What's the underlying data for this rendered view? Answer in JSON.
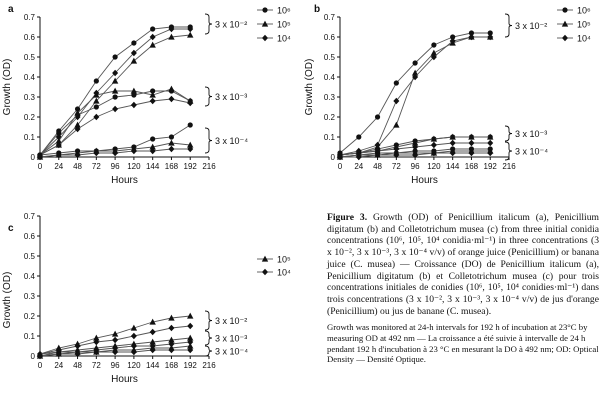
{
  "chart_data": [
    {
      "panel_label": "a",
      "type": "line",
      "ylabel": "Growth (OD)",
      "xlabel": "Hours",
      "x_ticks": [
        0,
        24,
        48,
        72,
        96,
        120,
        144,
        168,
        192,
        216
      ],
      "y_ticks": [
        "0",
        "0.1",
        "0.2",
        "0.3",
        "0.4",
        "0.5",
        "0.6",
        "0.7"
      ],
      "ylim": [
        0,
        0.7
      ],
      "xlim": [
        0,
        216
      ],
      "legend": [
        {
          "label": "10⁶",
          "marker": "circle"
        },
        {
          "label": "10⁵",
          "marker": "triangle"
        },
        {
          "label": "10⁴",
          "marker": "diamond"
        }
      ],
      "annotations": [
        "3 x 10⁻²",
        "3 x 10⁻³",
        "3 x 10⁻⁴"
      ],
      "x": [
        0,
        24,
        48,
        72,
        96,
        120,
        144,
        168,
        192
      ],
      "series": [
        {
          "marker": "circle",
          "values": [
            0.01,
            0.13,
            0.24,
            0.38,
            0.5,
            0.57,
            0.64,
            0.65,
            0.65
          ]
        },
        {
          "marker": "triangle",
          "values": [
            0.01,
            0.06,
            0.16,
            0.28,
            0.38,
            0.48,
            0.56,
            0.6,
            0.61
          ]
        },
        {
          "marker": "diamond",
          "values": [
            0.01,
            0.1,
            0.2,
            0.32,
            0.42,
            0.52,
            0.6,
            0.64,
            0.64
          ]
        },
        {
          "marker": "circle",
          "values": [
            0.01,
            0.12,
            0.21,
            0.25,
            0.3,
            0.31,
            0.33,
            0.33,
            0.28
          ]
        },
        {
          "marker": "triangle",
          "values": [
            0.01,
            0.08,
            0.22,
            0.31,
            0.33,
            0.33,
            0.31,
            0.34,
            0.28
          ]
        },
        {
          "marker": "diamond",
          "values": [
            0.01,
            0.06,
            0.14,
            0.2,
            0.24,
            0.26,
            0.28,
            0.29,
            0.27
          ]
        },
        {
          "marker": "circle",
          "values": [
            0.01,
            0.02,
            0.03,
            0.03,
            0.04,
            0.05,
            0.09,
            0.1,
            0.16
          ]
        },
        {
          "marker": "triangle",
          "values": [
            0.0,
            0.01,
            0.02,
            0.03,
            0.03,
            0.04,
            0.05,
            0.07,
            0.06
          ]
        },
        {
          "marker": "diamond",
          "values": [
            0.0,
            0.01,
            0.01,
            0.02,
            0.02,
            0.03,
            0.03,
            0.04,
            0.04
          ]
        }
      ]
    },
    {
      "panel_label": "b",
      "type": "line",
      "ylabel": "Growth (OD)",
      "xlabel": "Hours",
      "x_ticks": [
        0,
        24,
        48,
        72,
        96,
        120,
        144,
        168,
        192,
        216
      ],
      "y_ticks": [
        "0",
        "0.1",
        "0.2",
        "0.3",
        "0.4",
        "0.5",
        "0.6",
        "0.7"
      ],
      "ylim": [
        0,
        0.7
      ],
      "xlim": [
        0,
        216
      ],
      "legend": [
        {
          "label": "10⁶",
          "marker": "circle"
        },
        {
          "label": "10⁵",
          "marker": "triangle"
        },
        {
          "label": "10⁴",
          "marker": "diamond"
        }
      ],
      "annotations": [
        "3 x 10⁻²",
        "3 x 10⁻³",
        "3 x 10⁻⁴"
      ],
      "x": [
        0,
        24,
        48,
        72,
        96,
        120,
        144,
        168,
        192
      ],
      "series": [
        {
          "marker": "circle",
          "values": [
            0.02,
            0.1,
            0.2,
            0.37,
            0.47,
            0.56,
            0.6,
            0.62,
            0.62
          ]
        },
        {
          "marker": "triangle",
          "values": [
            0.01,
            0.02,
            0.05,
            0.16,
            0.42,
            0.52,
            0.57,
            0.6,
            0.6
          ]
        },
        {
          "marker": "diamond",
          "values": [
            0.01,
            0.03,
            0.06,
            0.28,
            0.4,
            0.5,
            0.58,
            0.6,
            0.6
          ]
        },
        {
          "marker": "circle",
          "values": [
            0.01,
            0.02,
            0.04,
            0.06,
            0.08,
            0.09,
            0.1,
            0.1,
            0.1
          ]
        },
        {
          "marker": "triangle",
          "values": [
            0.01,
            0.02,
            0.03,
            0.05,
            0.07,
            0.09,
            0.1,
            0.1,
            0.1
          ]
        },
        {
          "marker": "diamond",
          "values": [
            0.01,
            0.02,
            0.03,
            0.04,
            0.05,
            0.06,
            0.07,
            0.07,
            0.07
          ]
        },
        {
          "marker": "circle",
          "values": [
            0.0,
            0.01,
            0.02,
            0.02,
            0.03,
            0.03,
            0.04,
            0.04,
            0.04
          ]
        },
        {
          "marker": "triangle",
          "values": [
            0.0,
            0.01,
            0.01,
            0.02,
            0.02,
            0.02,
            0.03,
            0.03,
            0.03
          ]
        },
        {
          "marker": "diamond",
          "values": [
            0.0,
            0.0,
            0.01,
            0.01,
            0.01,
            0.02,
            0.02,
            0.02,
            0.02
          ]
        }
      ]
    },
    {
      "panel_label": "c",
      "type": "line",
      "ylabel": "Growth (OD)",
      "xlabel": "Hours",
      "x_ticks": [
        0,
        24,
        48,
        72,
        96,
        120,
        144,
        168,
        192,
        216
      ],
      "y_ticks": [
        "0",
        "0.1",
        "0.2",
        "0.3",
        "0.4",
        "0.5",
        "0.6",
        "0.7"
      ],
      "ylim": [
        0,
        0.7
      ],
      "xlim": [
        0,
        216
      ],
      "legend": [
        {
          "label": "10⁵",
          "marker": "triangle"
        },
        {
          "label": "10⁴",
          "marker": "diamond"
        }
      ],
      "annotations": [
        "3 x 10⁻²",
        "3 x 10⁻³",
        "3 x 10⁻⁴"
      ],
      "x": [
        0,
        24,
        48,
        72,
        96,
        120,
        144,
        168,
        192
      ],
      "series": [
        {
          "marker": "triangle",
          "values": [
            0.01,
            0.04,
            0.06,
            0.09,
            0.11,
            0.14,
            0.17,
            0.19,
            0.2
          ]
        },
        {
          "marker": "diamond",
          "values": [
            0.01,
            0.03,
            0.05,
            0.07,
            0.08,
            0.1,
            0.12,
            0.14,
            0.15
          ]
        },
        {
          "marker": "triangle",
          "values": [
            0.01,
            0.02,
            0.03,
            0.04,
            0.05,
            0.06,
            0.07,
            0.08,
            0.09
          ]
        },
        {
          "marker": "diamond",
          "values": [
            0.0,
            0.02,
            0.02,
            0.03,
            0.04,
            0.05,
            0.05,
            0.06,
            0.07
          ]
        },
        {
          "marker": "triangle",
          "values": [
            0.0,
            0.01,
            0.02,
            0.02,
            0.03,
            0.03,
            0.04,
            0.04,
            0.05
          ]
        },
        {
          "marker": "diamond",
          "values": [
            0.0,
            0.01,
            0.01,
            0.02,
            0.02,
            0.02,
            0.03,
            0.03,
            0.03
          ]
        }
      ]
    }
  ],
  "caption": {
    "fig_label": "Figure 3.",
    "text": " Growth (OD) of Penicillium italicum (a), Penicillium digitatum (b) and Colletotrichum musea (c) from three initial conidia concentrations (10⁶, 10⁵, 10⁴ conidia·ml⁻¹) in three concentrations (3 x 10⁻², 3 x 10⁻³, 3 x 10⁻⁴ v/v) of orange juice (Penicillium) or banana juice (C. musea) — Croissance (DO) de Penicillium italicum (a), Penicillium digitatum (b) et Colletotrichum musea (c) pour trois concentrations initiales de conidies (10⁶, 10⁵, 10⁴ conidies·ml⁻¹) dans trois concentrations (3 x 10⁻², 3 x 10⁻³, 3 x 10⁻⁴ v/v) de jus d'orange (Penicillium) ou jus de banane (C. musea).",
    "note": "Growth was monitored at 24-h intervals for 192 h of incubation at 23°C by measuring OD at 492 nm — La croissance a été suivie à intervalle de 24 h pendant 192 h d'incubation à 23 °C en mesurant la DO à 492 nm; OD: Optical Density — Densité Optique."
  }
}
